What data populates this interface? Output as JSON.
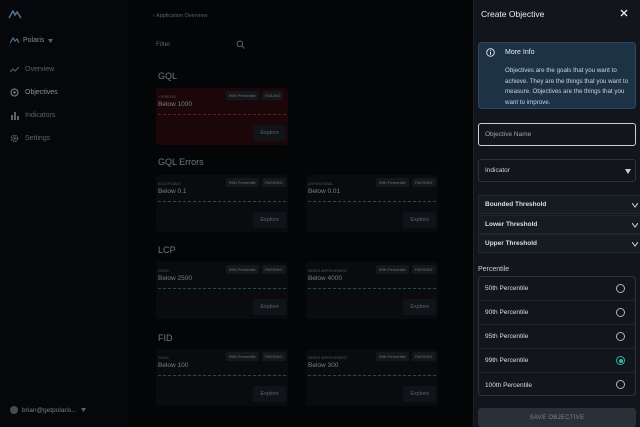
{
  "sidebar": {
    "org": "Polaris",
    "items": [
      {
        "label": "Overview",
        "icon": "trend-icon"
      },
      {
        "label": "Objectives",
        "icon": "target-icon"
      },
      {
        "label": "Indicators",
        "icon": "bar-chart-icon"
      },
      {
        "label": "Settings",
        "icon": "gear-icon"
      }
    ],
    "user": "brian@getpolaris..."
  },
  "main": {
    "breadcrumb": "‹  Application Overview",
    "filter_placeholder": "Filter",
    "sections": [
      {
        "title": "GQL",
        "cards": [
          {
            "sub": "+ errors",
            "name": "Below 1000",
            "percentile": "99th Percentile",
            "status": "FAILING",
            "explore": "Explore"
          }
        ]
      },
      {
        "title": "GQL Errors",
        "cards": [
          {
            "sub": "Acceptable",
            "name": "Below 0.1",
            "percentile": "99th Percentile",
            "status": "PASSING",
            "explore": "Explore"
          },
          {
            "sub": "Aspirational",
            "name": "Below 0.01",
            "percentile": "99th Percentile",
            "status": "PASSING",
            "explore": "Explore"
          }
        ]
      },
      {
        "title": "LCP",
        "cards": [
          {
            "sub": "Good",
            "name": "Below 2500",
            "percentile": "99th Percentile",
            "status": "PASSING",
            "explore": "Explore"
          },
          {
            "sub": "Needs Improvement",
            "name": "Below 4000",
            "percentile": "99th Percentile",
            "status": "PASSING",
            "explore": "Explore"
          }
        ]
      },
      {
        "title": "FID",
        "cards": [
          {
            "sub": "Good",
            "name": "Below 100",
            "percentile": "99th Percentile",
            "status": "PASSING",
            "explore": "Explore"
          },
          {
            "sub": "Needs Improvement",
            "name": "Below 300",
            "percentile": "99th Percentile",
            "status": "PASSING",
            "explore": "Explore"
          }
        ]
      }
    ]
  },
  "drawer": {
    "title": "Create Objective",
    "info_title": "More Info",
    "info_text": "Objectives are the goals that you want to achieve. They are the things that you want to measure. Objectives are the things that you want to improve.",
    "name_placeholder": "Objective Name",
    "indicator_label": "Indicator",
    "accordions": [
      "Bounded Threshold",
      "Lower Threshold",
      "Upper Threshold"
    ],
    "percentile_label": "Percentile",
    "percentiles": [
      {
        "label": "50th Percentile",
        "selected": false
      },
      {
        "label": "90th Percentile",
        "selected": false
      },
      {
        "label": "95th Percentile",
        "selected": false
      },
      {
        "label": "99th Percentile",
        "selected": true
      },
      {
        "label": "100th Percentile",
        "selected": false
      }
    ],
    "save_label": "SAVE OBJECTIVE"
  },
  "colors": {
    "accent": "#2fb5a0",
    "fail": "#9b2a36",
    "info_bg": "#1e3246"
  }
}
